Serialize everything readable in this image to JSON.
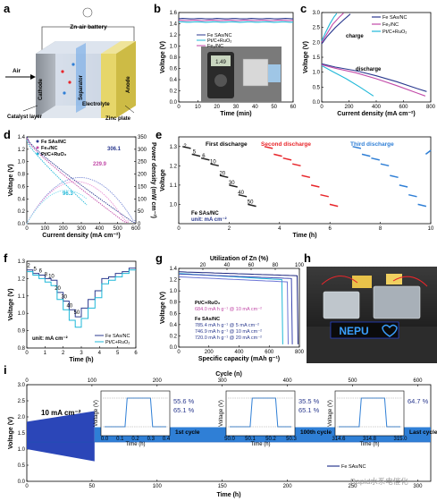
{
  "watermark": "Rapid水系电催化",
  "colors": {
    "fe_sas": "#2b3a8f",
    "fe_sas_light": "#7f8fd8",
    "fe3n": "#c24aa8",
    "fe3n_light": "#e98fd4",
    "ptc": "#1fb8d8",
    "ptc_light": "#7fdcef",
    "red": "#e8262b",
    "blue": "#2f7fd6",
    "green": "#1a8f3a"
  },
  "a": {
    "letter": "a",
    "title": "Zn-air battery",
    "labels": [
      "Cathode",
      "Separator",
      "Anode",
      "Air",
      "Catalyst layer",
      "Electrolyte",
      "Zinc plate"
    ],
    "icons": [
      "bulb-icon",
      "battery-schematic"
    ]
  },
  "b": {
    "letter": "b",
    "xlabel": "Time (min)",
    "ylabel": "Voltage (V)",
    "xlim": [
      0,
      60
    ],
    "ylim": [
      0,
      1.6
    ],
    "xticks": [
      0,
      10,
      20,
      30,
      40,
      50,
      60
    ],
    "yticks": [
      0,
      0.2,
      0.4,
      0.6,
      0.8,
      1.0,
      1.2,
      1.4,
      1.6
    ],
    "series": [
      {
        "name": "Fe SAs/NC",
        "y": 1.49
      },
      {
        "name": "Pt/C+RuO₂",
        "y": 1.43
      },
      {
        "name": "Fe₃/NC",
        "y": 1.46
      }
    ]
  },
  "c": {
    "letter": "c",
    "xlabel": "Current density (mA cm⁻²)",
    "ylabel": "Voltage (V)",
    "xlim": [
      0,
      800
    ],
    "ylim": [
      0.0,
      3.0
    ],
    "xticks": [
      0,
      200,
      400,
      600,
      800
    ],
    "yticks": [
      0.0,
      0.5,
      1.0,
      1.5,
      2.0,
      2.5,
      3.0
    ],
    "annotations": [
      "charge",
      "discharge"
    ],
    "series": [
      "Fe SAs/NC",
      "Fe₃/NC",
      "Pt/C+RuO₂"
    ]
  },
  "d": {
    "letter": "d",
    "xlabel": "Current density (mA cm⁻²)",
    "ylabel": "Voltage (V)",
    "ylabel2": "Power density (mW cm⁻²)",
    "xlim": [
      0,
      600
    ],
    "ylim": [
      0,
      1.4
    ],
    "ylim2": [
      0,
      350
    ],
    "xticks": [
      0,
      100,
      200,
      300,
      400,
      500,
      600
    ],
    "yticks": [
      0,
      0.2,
      0.4,
      0.6,
      0.8,
      1.0,
      1.2,
      1.4
    ],
    "yticks2": [
      0,
      50,
      100,
      150,
      200,
      250,
      300,
      350
    ],
    "peaks": [
      "306.1",
      "229.9",
      "96.3"
    ],
    "series": [
      "Fe SAs/NC",
      "Fe₃/NC",
      "Pt/C+RuO₂"
    ]
  },
  "e": {
    "letter": "e",
    "xlabel": "Time (h)",
    "ylabel": "Voltage",
    "xlim": [
      0,
      10
    ],
    "ylim": [
      0.9,
      1.35
    ],
    "xticks": [
      0,
      2,
      4,
      6,
      8,
      10
    ],
    "yticks": [
      1.0,
      1.1,
      1.2,
      1.3
    ],
    "first": "First discharge",
    "second": "Second discharge",
    "third": "Third discharge",
    "current_labels": [
      "2",
      "5",
      "6",
      "10",
      "20",
      "30",
      "40",
      "50"
    ],
    "sample": "Fe SAs/NC",
    "unit": "unit: mA cm⁻²"
  },
  "f": {
    "letter": "f",
    "xlabel": "Time (h)",
    "ylabel": "Voltage (V)",
    "xlim": [
      0,
      6
    ],
    "ylim": [
      0.8,
      1.3
    ],
    "xticks": [
      0,
      1,
      2,
      3,
      4,
      5,
      6
    ],
    "yticks": [
      0.8,
      0.9,
      1.0,
      1.1,
      1.2,
      1.3
    ],
    "current_labels": [
      "2",
      "5",
      "6",
      "8",
      "10",
      "20",
      "30",
      "40",
      "50"
    ],
    "unit": "unit: mA cm⁻²",
    "series": [
      "Fe SAs/NC",
      "Pt/C+RuO₂"
    ]
  },
  "g": {
    "letter": "g",
    "xlabel": "Specific capacity (mAh g⁻¹)",
    "ylabel": "Voltage (V)",
    "xlabel_top": "Utilization of Zn (%)",
    "xlim": [
      0,
      800
    ],
    "ylim": [
      0,
      1.4
    ],
    "xticks": [
      0,
      200,
      400,
      600,
      800
    ],
    "xticks_top": [
      20,
      40,
      60,
      80,
      100
    ],
    "yticks": [
      0,
      0.2,
      0.4,
      0.6,
      0.8,
      1.0,
      1.2,
      1.4
    ],
    "ptc_name": "Pt/C+RuO₂",
    "ptc_cap": "684.0 mA h g⁻¹ @ 10 mA cm⁻²",
    "fe_name": "Fe SAs/NC",
    "caps": [
      "785.4 mA h g⁻¹ @ 5 mA cm⁻²",
      "746.9 mA h g⁻¹ @ 10 mA cm⁻²",
      "720.0 mA h g⁻¹ @ 20 mA cm⁻²"
    ]
  },
  "h": {
    "letter": "h",
    "display_text": "NEPU",
    "icons": [
      "heart-icon"
    ]
  },
  "i": {
    "letter": "i",
    "xlabel": "Time (h)",
    "ylabel": "Voltage (V)",
    "xlabel_top": "Cycle (n)",
    "xlim": [
      0,
      310
    ],
    "ylim": [
      0,
      3.0
    ],
    "xticks": [
      0,
      50,
      100,
      150,
      200,
      250,
      300
    ],
    "xticks_top": [
      0,
      100,
      200,
      300,
      400,
      500,
      600
    ],
    "yticks": [
      0.0,
      0.5,
      1.0,
      1.5,
      2.0,
      2.5,
      3.0
    ],
    "current": "10 mA cm⁻²",
    "legend": "Fe SAs/NC",
    "insets": [
      {
        "caption": "1st cycle",
        "eff1": "55.6 %",
        "eff2": "65.1 %",
        "xticks": [
          "0.0",
          "0.1",
          "0.2",
          "0.3",
          "0.4"
        ]
      },
      {
        "caption": "100th cycle",
        "eff1": "35.5 %",
        "eff2": "65.1 %",
        "xticks": [
          "50.0",
          "50.1",
          "50.2",
          "50.3"
        ]
      },
      {
        "caption": "Last cycle",
        "eff1": "64.7 %",
        "eff2": "",
        "xticks": [
          "314.6",
          "314.8",
          "315.0"
        ]
      }
    ]
  }
}
